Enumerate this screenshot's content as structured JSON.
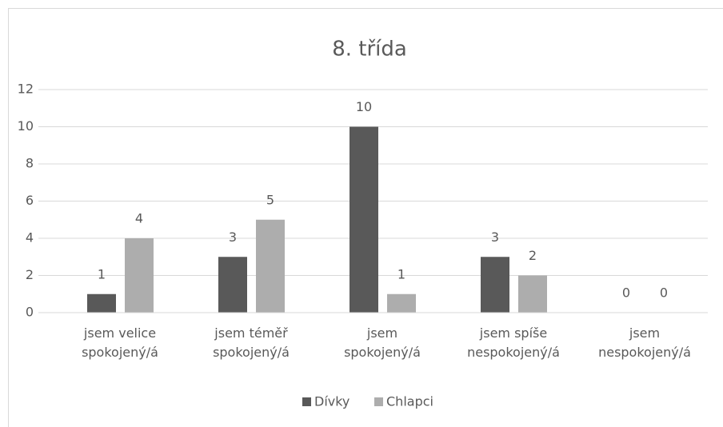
{
  "chart_data": {
    "type": "bar",
    "title": "8. třída",
    "categories": [
      "jsem velice spokojený/á",
      "jsem téměř spokojený/á",
      "jsem spokojený/á",
      "jsem spíše nespokojený/á",
      "jsem nespokojený/á"
    ],
    "series": [
      {
        "name": "Dívky",
        "color": "#595959",
        "values": [
          1,
          3,
          10,
          3,
          0
        ]
      },
      {
        "name": "Chlapci",
        "color": "#adadad",
        "values": [
          4,
          5,
          1,
          2,
          0
        ]
      }
    ],
    "ylim": [
      0,
      12
    ],
    "yticks": [
      0,
      2,
      4,
      6,
      8,
      10,
      12
    ],
    "grid": true,
    "legend": "bottom"
  }
}
